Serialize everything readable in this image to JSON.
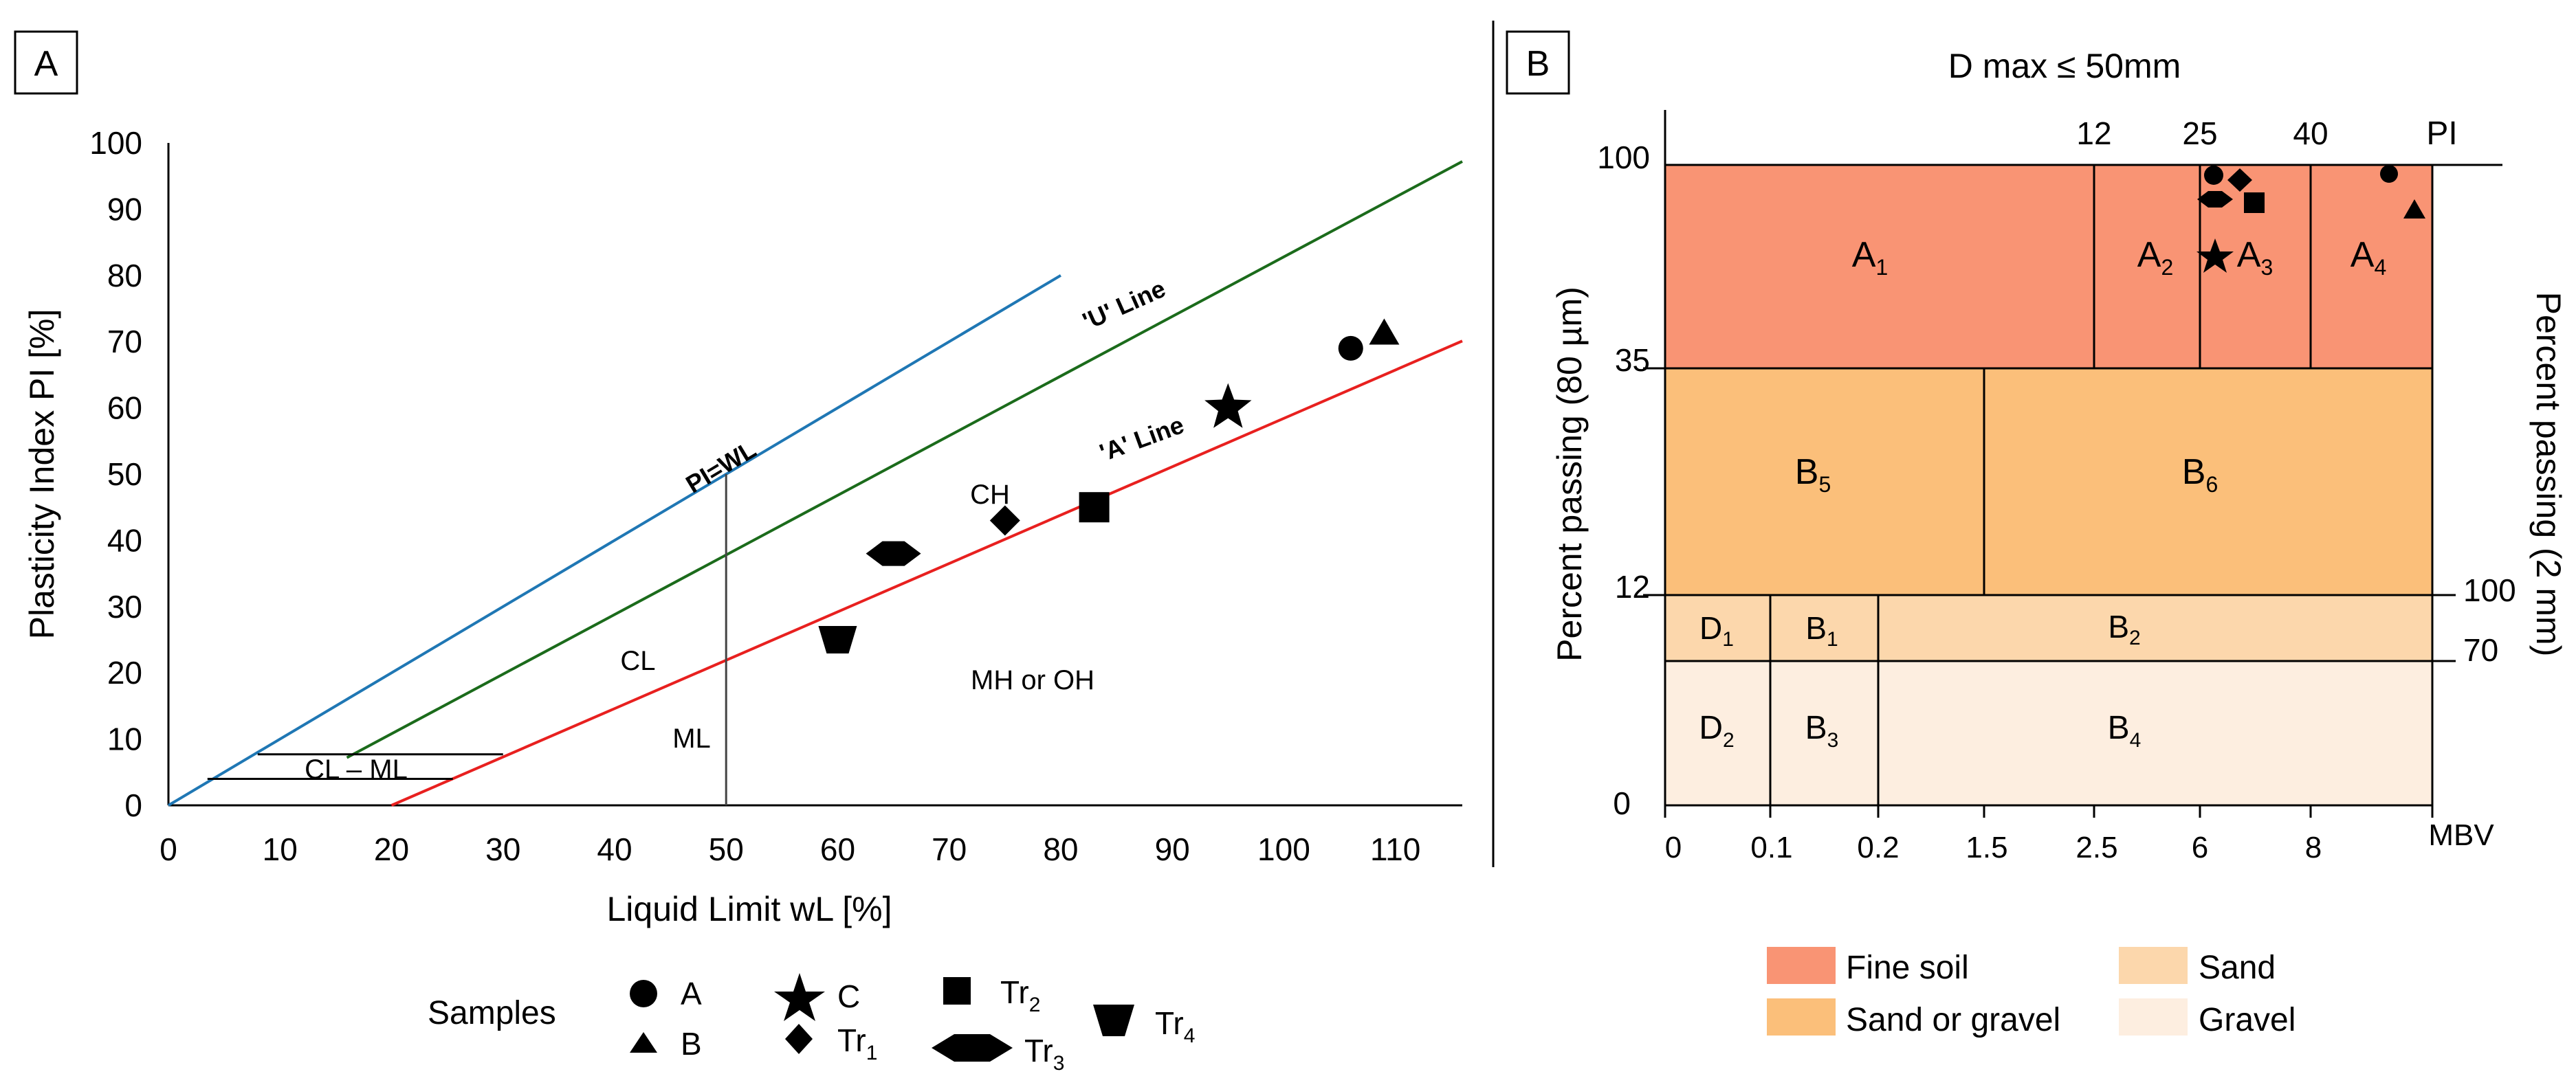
{
  "panel_a": {
    "label": "A",
    "xlabel": "Liquid Limit wL [%]",
    "ylabel": "Plasticity Index PI [%]",
    "xticks": [
      "0",
      "10",
      "20",
      "30",
      "40",
      "50",
      "60",
      "70",
      "80",
      "90",
      "100",
      "110"
    ],
    "yticks": [
      "0",
      "10",
      "20",
      "30",
      "40",
      "50",
      "60",
      "70",
      "80",
      "90",
      "100"
    ],
    "line_labels": {
      "pi_wl": "PI=WL",
      "u_line": "'U' Line",
      "a_line": "'A' Line"
    },
    "zones": {
      "ch": "CH",
      "cl": "CL",
      "ml": "ML",
      "mh": "MH or OH",
      "clml": "CL – ML"
    },
    "legend_title": "Samples",
    "legend": {
      "a": "A",
      "b": "B",
      "c": "C",
      "tr1": "Tr",
      "tr1_sub": "1",
      "tr2": "Tr",
      "tr2_sub": "2",
      "tr3": "Tr",
      "tr3_sub": "3",
      "tr4": "Tr",
      "tr4_sub": "4"
    }
  },
  "panel_b": {
    "label": "B",
    "title": "D max ≤ 50mm",
    "ylabel_left": "Percent  passing (80 µm)",
    "ylabel_right": "Percent  passing (2 mm)",
    "xlabel": "MBV",
    "pi_label": "PI",
    "xticks": [
      "0",
      "0.1",
      "0.2",
      "1.5",
      "2.5",
      "6",
      "8"
    ],
    "pi_ticks": [
      "12",
      "25",
      "40"
    ],
    "yticks": [
      "100",
      "35",
      "12",
      "0"
    ],
    "right_ticks": [
      "100",
      "70"
    ],
    "classes": {
      "a1": "A",
      "a1_sub": "1",
      "a2": "A",
      "a2_sub": "2",
      "a3": "A",
      "a3_sub": "3",
      "a4": "A",
      "a4_sub": "4",
      "b5": "B",
      "b5_sub": "5",
      "b6": "B",
      "b6_sub": "6",
      "d1": "D",
      "d1_sub": "1",
      "b1": "B",
      "b1_sub": "1",
      "b2": "B",
      "b2_sub": "2",
      "d2": "D",
      "d2_sub": "2",
      "b3": "B",
      "b3_sub": "3",
      "b4": "B",
      "b4_sub": "4"
    },
    "legend": {
      "fine": "Fine soil",
      "sand_gravel": "Sand or gravel",
      "sand": "Sand",
      "gravel": "Gravel"
    },
    "colors": {
      "fine": "#f99474",
      "sand_gravel": "#fbbf7a",
      "sand": "#fcd7ac",
      "gravel": "#fdeee0"
    }
  },
  "chart_data": [
    {
      "type": "scatter",
      "title": "",
      "xlabel": "Liquid Limit wL [%]",
      "ylabel": "Plasticity Index PI [%]",
      "xlim": [
        0,
        116
      ],
      "ylim": [
        0,
        100
      ],
      "series": [
        {
          "name": "A",
          "x": [
            106
          ],
          "y": [
            69
          ]
        },
        {
          "name": "B",
          "x": [
            109
          ],
          "y": [
            71
          ]
        },
        {
          "name": "C",
          "x": [
            95
          ],
          "y": [
            60
          ]
        },
        {
          "name": "Tr1",
          "x": [
            75
          ],
          "y": [
            43
          ]
        },
        {
          "name": "Tr2",
          "x": [
            83
          ],
          "y": [
            45
          ]
        },
        {
          "name": "Tr3",
          "x": [
            65
          ],
          "y": [
            38
          ]
        },
        {
          "name": "Tr4",
          "x": [
            60
          ],
          "y": [
            25
          ]
        }
      ],
      "lines": [
        {
          "name": "PI=WL",
          "x": [
            0,
            80
          ],
          "y": [
            0,
            80
          ]
        },
        {
          "name": "'U' Line",
          "x": [
            16,
            116
          ],
          "y": [
            7.2,
            97.2
          ]
        },
        {
          "name": "'A' Line",
          "x": [
            20,
            116
          ],
          "y": [
            0,
            70.1
          ]
        }
      ]
    },
    {
      "type": "table",
      "title": "D max ≤ 50mm",
      "xlabel": "MBV",
      "ylabel": "Percent passing (80 µm)",
      "classes": [
        "A1",
        "A2",
        "A3",
        "A4",
        "B5",
        "B6",
        "D1",
        "B1",
        "B2",
        "D2",
        "B3",
        "B4"
      ]
    }
  ]
}
